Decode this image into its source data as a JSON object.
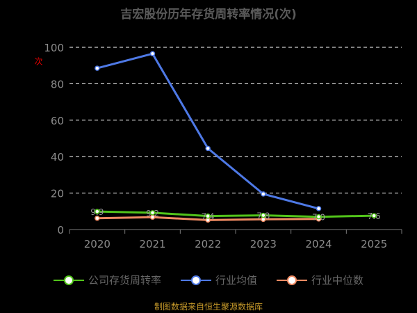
{
  "chart_data": {
    "type": "line",
    "title": "吉宏股份历年存货周转率情况(次)",
    "unit_label": "次",
    "categories": [
      "2020",
      "2021",
      "2022",
      "2023",
      "2024",
      "2025"
    ],
    "ylim": [
      0,
      100
    ],
    "yticks": [
      0,
      20,
      40,
      60,
      80,
      100
    ],
    "grid": true,
    "legend_position": "bottom",
    "series": [
      {
        "name": "公司存货周转率",
        "color": "#52c41a",
        "values": [
          9.9,
          9.2,
          7.4,
          7.8,
          7.0,
          7.6
        ],
        "labels": [
          "9.9",
          "9.2",
          "7.4",
          "7.8",
          "7.0",
          "7.6"
        ]
      },
      {
        "name": "行业均值",
        "color": "#4e79e6",
        "values": [
          88.5,
          96.5,
          44.5,
          19.5,
          11.5,
          null
        ],
        "labels": []
      },
      {
        "name": "行业中位数",
        "color": "#f08a62",
        "values": [
          6.2,
          6.8,
          5.2,
          5.6,
          5.8,
          null
        ],
        "labels": []
      }
    ],
    "source": "制图数据来自恒生聚源数据库"
  }
}
